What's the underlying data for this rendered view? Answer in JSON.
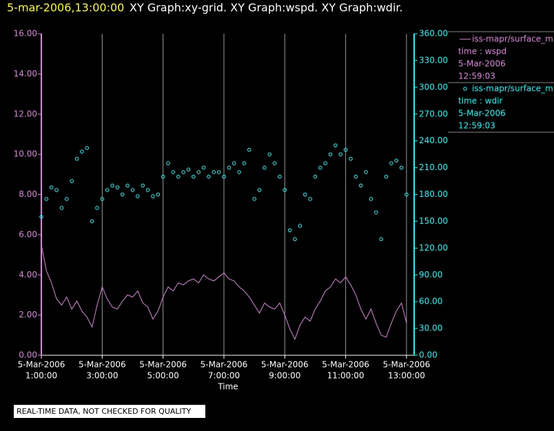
{
  "header": {
    "datetime": "5-mar-2006,13:00:00",
    "graphs": "XY Graph:xy-grid.  XY Graph:wspd.  XY Graph:wdir."
  },
  "chart_data": {
    "type": "line",
    "xlabel": "Time",
    "x": [
      "01:00",
      "01:10",
      "01:20",
      "01:30",
      "01:40",
      "01:50",
      "02:00",
      "02:10",
      "02:20",
      "02:30",
      "02:40",
      "02:50",
      "03:00",
      "03:10",
      "03:20",
      "03:30",
      "03:40",
      "03:50",
      "04:00",
      "04:10",
      "04:20",
      "04:30",
      "04:40",
      "04:50",
      "05:00",
      "05:10",
      "05:20",
      "05:30",
      "05:40",
      "05:50",
      "06:00",
      "06:10",
      "06:20",
      "06:30",
      "06:40",
      "06:50",
      "07:00",
      "07:10",
      "07:20",
      "07:30",
      "07:40",
      "07:50",
      "08:00",
      "08:10",
      "08:20",
      "08:30",
      "08:40",
      "08:50",
      "09:00",
      "09:10",
      "09:20",
      "09:30",
      "09:40",
      "09:50",
      "10:00",
      "10:10",
      "10:20",
      "10:30",
      "10:40",
      "10:50",
      "11:00",
      "11:10",
      "11:20",
      "11:30",
      "11:40",
      "11:50",
      "12:00",
      "12:10",
      "12:20",
      "12:30",
      "12:40",
      "12:50",
      "13:00"
    ],
    "xlim": [
      "01:00",
      "13:15"
    ],
    "xticks": [
      {
        "value": "01:00",
        "label": [
          "5-Mar-2006",
          "1:00:00"
        ]
      },
      {
        "value": "03:00",
        "label": [
          "5-Mar-2006",
          "3:00:00"
        ]
      },
      {
        "value": "05:00",
        "label": [
          "5-Mar-2006",
          "5:00:00"
        ]
      },
      {
        "value": "07:00",
        "label": [
          "5-Mar-2006",
          "7:00:00"
        ]
      },
      {
        "value": "09:00",
        "label": [
          "5-Mar-2006",
          "9:00:00"
        ]
      },
      {
        "value": "11:00",
        "label": [
          "5-Mar-2006",
          "11:00:00"
        ]
      },
      {
        "value": "13:00",
        "label": [
          "5-Mar-2006",
          "13:00:00"
        ]
      }
    ],
    "ylim": [
      0,
      16
    ],
    "yticks": [
      {
        "value": 0,
        "label": "0.00"
      },
      {
        "value": 2,
        "label": "2.00"
      },
      {
        "value": 4,
        "label": "4.00"
      },
      {
        "value": 6,
        "label": "6.00"
      },
      {
        "value": 8,
        "label": "8.00"
      },
      {
        "value": 10,
        "label": "10.00"
      },
      {
        "value": 12,
        "label": "12.00"
      },
      {
        "value": 14,
        "label": "14.00"
      },
      {
        "value": 16,
        "label": "16.00"
      }
    ],
    "y2lim": [
      0,
      360
    ],
    "y2ticks": [
      {
        "value": 0,
        "label": "0.00"
      },
      {
        "value": 30,
        "label": "30.00"
      },
      {
        "value": 60,
        "label": "60.00"
      },
      {
        "value": 90,
        "label": "90.00"
      },
      {
        "value": 120,
        "label": "120.00"
      },
      {
        "value": 150,
        "label": "150.00"
      },
      {
        "value": 180,
        "label": "180.00"
      },
      {
        "value": 210,
        "label": "210.00"
      },
      {
        "value": 240,
        "label": "240.00"
      },
      {
        "value": 270,
        "label": "270.00"
      },
      {
        "value": 300,
        "label": "300.00"
      },
      {
        "value": 330,
        "label": "330.00"
      },
      {
        "value": 360,
        "label": "360.00"
      }
    ],
    "grid": true,
    "series": [
      {
        "name": "iss-mapr/surface_m",
        "legend_lines": [
          "time : wspd",
          "5-Mar-2006",
          "12:59:03"
        ],
        "color": "#e080e0",
        "style": "line",
        "values": [
          5.5,
          4.2,
          3.6,
          2.8,
          2.5,
          2.9,
          2.3,
          2.7,
          2.2,
          1.9,
          1.4,
          2.5,
          3.4,
          2.8,
          2.4,
          2.3,
          2.7,
          3.0,
          2.9,
          3.2,
          2.6,
          2.4,
          1.8,
          2.2,
          2.9,
          3.4,
          3.2,
          3.6,
          3.5,
          3.7,
          3.8,
          3.6,
          4.0,
          3.8,
          3.7,
          3.9,
          4.1,
          3.8,
          3.7,
          3.4,
          3.2,
          2.9,
          2.5,
          2.1,
          2.6,
          2.4,
          2.3,
          2.6,
          2.0,
          1.3,
          0.8,
          1.5,
          1.9,
          1.7,
          2.3,
          2.7,
          3.2,
          3.4,
          3.8,
          3.6,
          3.9,
          3.5,
          3.0,
          2.3,
          1.8,
          2.3,
          1.6,
          1.0,
          0.9,
          1.6,
          2.2,
          2.6,
          1.6
        ]
      },
      {
        "name": "iss-mapr/surface_m",
        "legend_lines": [
          "time : wdir",
          "5-Mar-2006",
          "12:59:03"
        ],
        "color": "#00ffff",
        "style": "markers",
        "axis": "y2",
        "values": [
          155,
          175,
          188,
          185,
          165,
          175,
          195,
          220,
          228,
          232,
          150,
          165,
          175,
          185,
          190,
          188,
          180,
          190,
          185,
          178,
          190,
          185,
          178,
          180,
          200,
          215,
          205,
          200,
          205,
          208,
          200,
          205,
          210,
          200,
          205,
          205,
          200,
          210,
          215,
          205,
          215,
          230,
          175,
          185,
          210,
          225,
          215,
          200,
          185,
          140,
          130,
          145,
          180,
          175,
          200,
          210,
          215,
          225,
          235,
          225,
          230,
          220,
          200,
          190,
          205,
          175,
          160,
          130,
          200,
          215,
          218,
          210,
          180
        ]
      }
    ]
  },
  "footer": "REAL-TIME DATA, NOT CHECKED FOR QUALITY"
}
